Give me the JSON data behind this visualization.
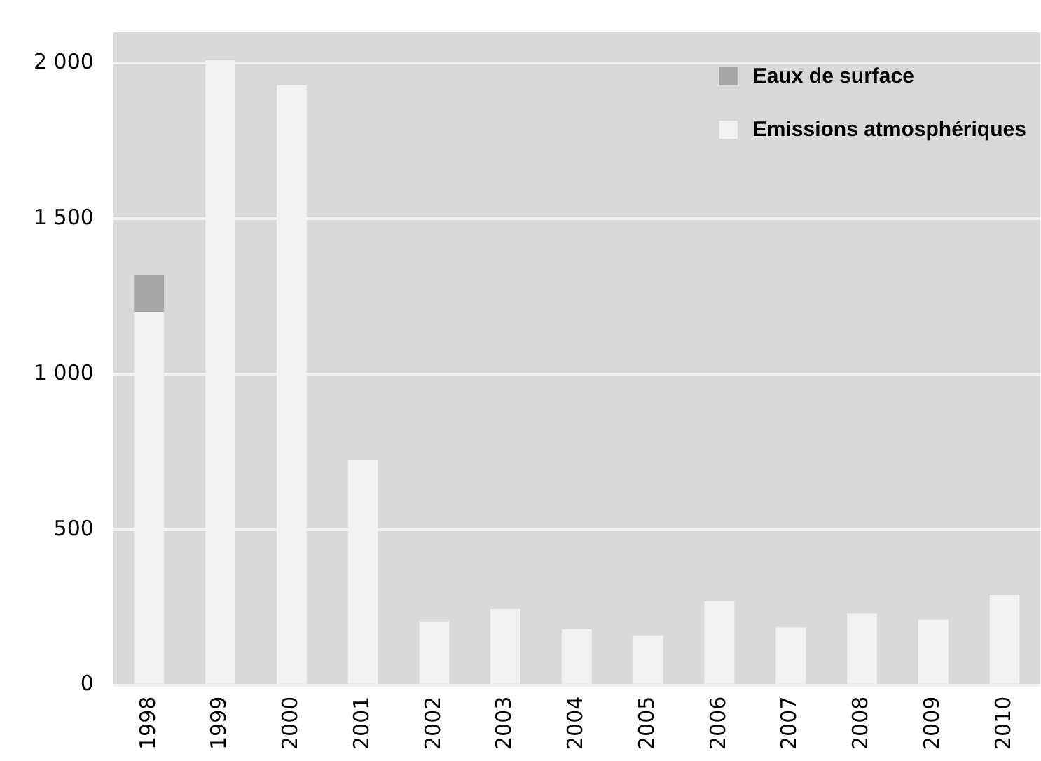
{
  "chart_data": {
    "type": "bar",
    "stacked": true,
    "categories": [
      "1998",
      "1999",
      "2000",
      "2001",
      "2002",
      "2003",
      "2004",
      "2005",
      "2006",
      "2007",
      "2008",
      "2009",
      "2010"
    ],
    "series": [
      {
        "name": "Emissions atmosphériques",
        "color": "#f2f2f2",
        "values": [
          1200,
          2010,
          1930,
          725,
          205,
          245,
          180,
          160,
          270,
          185,
          230,
          210,
          290
        ]
      },
      {
        "name": "Eaux de surface",
        "color": "#a6a6a6",
        "values": [
          120,
          null,
          null,
          null,
          null,
          null,
          null,
          null,
          null,
          null,
          null,
          null,
          null
        ]
      }
    ],
    "ylim": [
      0,
      2100
    ],
    "yticks": [
      0,
      500,
      {
        "value": 1000,
        "label": "1 000"
      },
      {
        "value": 1500,
        "label": "1 500"
      },
      {
        "value": 2000,
        "label": "2 000"
      }
    ],
    "grid": "y",
    "legend": "top right"
  }
}
